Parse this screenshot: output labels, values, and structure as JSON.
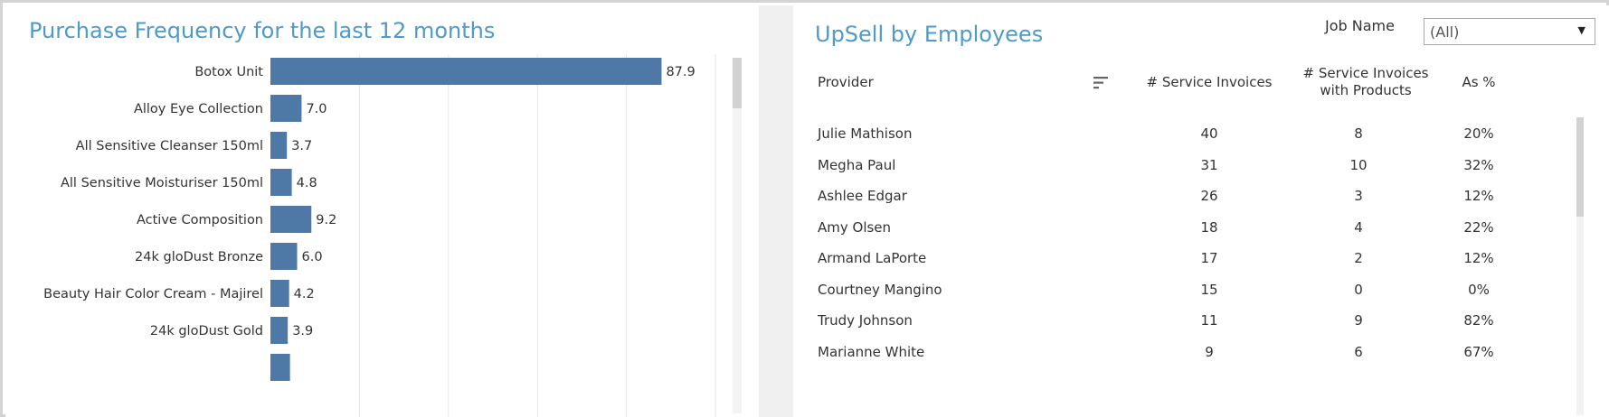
{
  "left": {
    "title": "Purchase Frequency for the last 12 months"
  },
  "chart_data": {
    "type": "bar",
    "orientation": "horizontal",
    "title": "Purchase Frequency for the last 12 months",
    "categories": [
      "Botox Unit",
      "Alloy Eye Collection",
      "All Sensitive Cleanser 150ml",
      "All Sensitive Moisturiser 150ml",
      "Active Composition",
      "24k gloDust Bronze",
      "Beauty Hair Color Cream - Majirel",
      "24k gloDust Gold"
    ],
    "values": [
      87.9,
      7.0,
      3.7,
      4.8,
      9.2,
      6.0,
      4.2,
      3.9
    ],
    "value_labels": [
      "87.9",
      "7.0",
      "3.7",
      "4.8",
      "9.2",
      "6.0",
      "4.2",
      "3.9"
    ],
    "partial_next_bar_value": 4.4,
    "xlim": [
      0,
      100
    ],
    "gridlines_at": [
      20,
      40,
      60,
      80,
      100
    ],
    "grid": true,
    "bar_color": "#4e79a7"
  },
  "right": {
    "title": "UpSell by Employees",
    "filter": {
      "label": "Job Name",
      "selected": "(All)"
    },
    "headers": {
      "provider": "Provider",
      "invoices": "# Service Invoices",
      "with_products_line1": "# Service Invoices",
      "with_products_line2": "with Products",
      "pct": "As %"
    },
    "rows": [
      {
        "name": "Julie Mathison",
        "invoices": "40",
        "with_products": "8",
        "pct": "20%"
      },
      {
        "name": "Megha Paul",
        "invoices": "31",
        "with_products": "10",
        "pct": "32%"
      },
      {
        "name": "Ashlee Edgar",
        "invoices": "26",
        "with_products": "3",
        "pct": "12%"
      },
      {
        "name": "Amy Olsen",
        "invoices": "18",
        "with_products": "4",
        "pct": "22%"
      },
      {
        "name": "Armand LaPorte",
        "invoices": "17",
        "with_products": "2",
        "pct": "12%"
      },
      {
        "name": "Courtney Mangino",
        "invoices": "15",
        "with_products": "0",
        "pct": "0%"
      },
      {
        "name": "Trudy Johnson",
        "invoices": "11",
        "with_products": "9",
        "pct": "82%"
      },
      {
        "name": "Marianne White",
        "invoices": "9",
        "with_products": "6",
        "pct": "67%"
      }
    ]
  },
  "colors": {
    "title": "#4e9ac9",
    "bar": "#4e79a7",
    "gridline": "#e6e6e6"
  },
  "icons": {
    "sort": "sort-descending-icon",
    "dropdown": "chevron-down-icon"
  }
}
